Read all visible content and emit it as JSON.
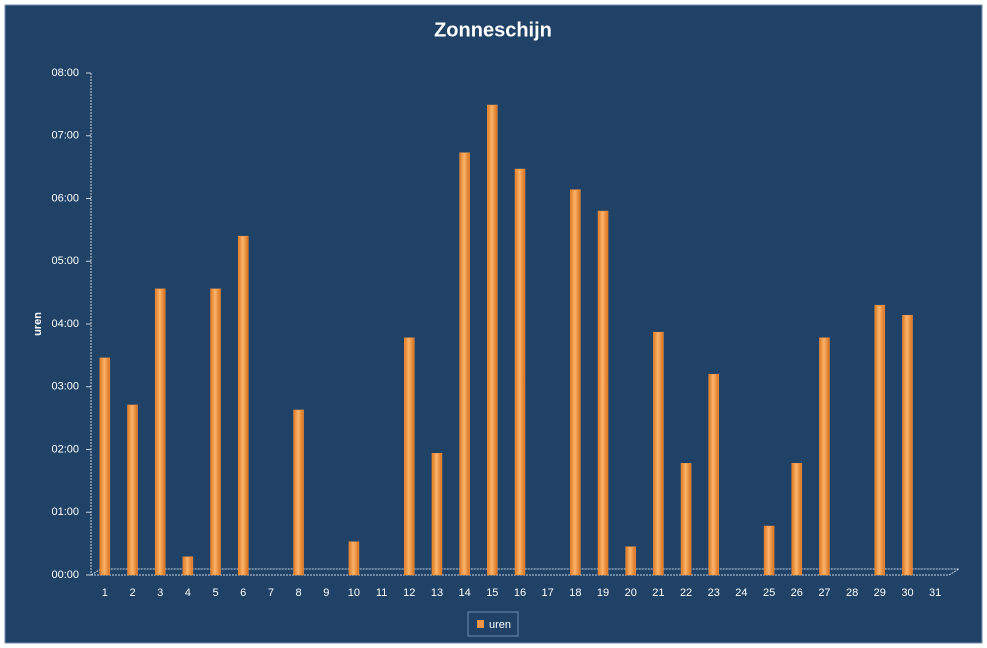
{
  "chart_data": {
    "type": "bar",
    "title": "Zonneschijn",
    "y_label": "uren",
    "categories": [
      "1",
      "2",
      "3",
      "4",
      "5",
      "6",
      "7",
      "8",
      "9",
      "10",
      "11",
      "12",
      "13",
      "14",
      "15",
      "16",
      "17",
      "18",
      "19",
      "20",
      "21",
      "22",
      "23",
      "24",
      "25",
      "26",
      "27",
      "28",
      "29",
      "30",
      "31"
    ],
    "series": [
      {
        "name": "uren",
        "color": "#f79646",
        "values": [
          3.46,
          2.71,
          4.56,
          0.29,
          4.56,
          5.4,
          0,
          2.63,
          0,
          0.53,
          0,
          3.78,
          1.94,
          6.73,
          7.49,
          6.47,
          0,
          6.14,
          5.8,
          0.45,
          3.87,
          1.78,
          3.2,
          0,
          0.78,
          1.78,
          3.78,
          0,
          4.3,
          4.14,
          0
        ]
      }
    ],
    "ylim": [
      0,
      8
    ],
    "yticks": [
      {
        "value": 0,
        "label": "00:00"
      },
      {
        "value": 1,
        "label": "01:00"
      },
      {
        "value": 2,
        "label": "02:00"
      },
      {
        "value": 3,
        "label": "03:00"
      },
      {
        "value": 4,
        "label": "04:00"
      },
      {
        "value": 5,
        "label": "05:00"
      },
      {
        "value": 6,
        "label": "06:00"
      },
      {
        "value": 7,
        "label": "07:00"
      },
      {
        "value": 8,
        "label": "08:00"
      }
    ],
    "legend": "bottom"
  }
}
